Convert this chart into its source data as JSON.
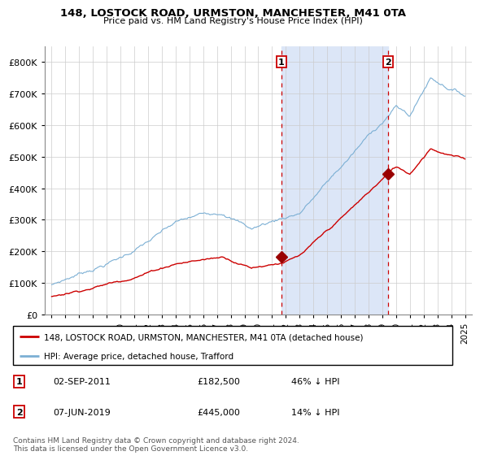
{
  "title": "148, LOSTOCK ROAD, URMSTON, MANCHESTER, M41 0TA",
  "subtitle": "Price paid vs. HM Land Registry's House Price Index (HPI)",
  "property_label": "148, LOSTOCK ROAD, URMSTON, MANCHESTER, M41 0TA (detached house)",
  "hpi_label": "HPI: Average price, detached house, Trafford",
  "footer": "Contains HM Land Registry data © Crown copyright and database right 2024.\nThis data is licensed under the Open Government Licence v3.0.",
  "sale1": {
    "num": "1",
    "date": "02-SEP-2011",
    "price": "£182,500",
    "pct": "46% ↓ HPI",
    "year": 2011.67
  },
  "sale2": {
    "num": "2",
    "date": "07-JUN-2019",
    "price": "£445,000",
    "pct": "14% ↓ HPI",
    "year": 2019.43
  },
  "sale1_value": 182500,
  "sale2_value": 445000,
  "ylim": [
    0,
    850000
  ],
  "xlim": [
    1994.5,
    2025.5
  ],
  "yticks": [
    0,
    100000,
    200000,
    300000,
    400000,
    500000,
    600000,
    700000,
    800000
  ],
  "ytick_labels": [
    "£0",
    "£100K",
    "£200K",
    "£300K",
    "£400K",
    "£500K",
    "£600K",
    "£700K",
    "£800K"
  ],
  "xticks": [
    1995,
    1996,
    1997,
    1998,
    1999,
    2000,
    2001,
    2002,
    2003,
    2004,
    2005,
    2006,
    2007,
    2008,
    2009,
    2010,
    2011,
    2012,
    2013,
    2014,
    2015,
    2016,
    2017,
    2018,
    2019,
    2020,
    2021,
    2022,
    2023,
    2024,
    2025
  ],
  "shaded_color": "#dce6f7",
  "line_color_property": "#cc0000",
  "line_color_hpi": "#7bafd4",
  "vline_color": "#cc0000",
  "dot_color": "#990000"
}
